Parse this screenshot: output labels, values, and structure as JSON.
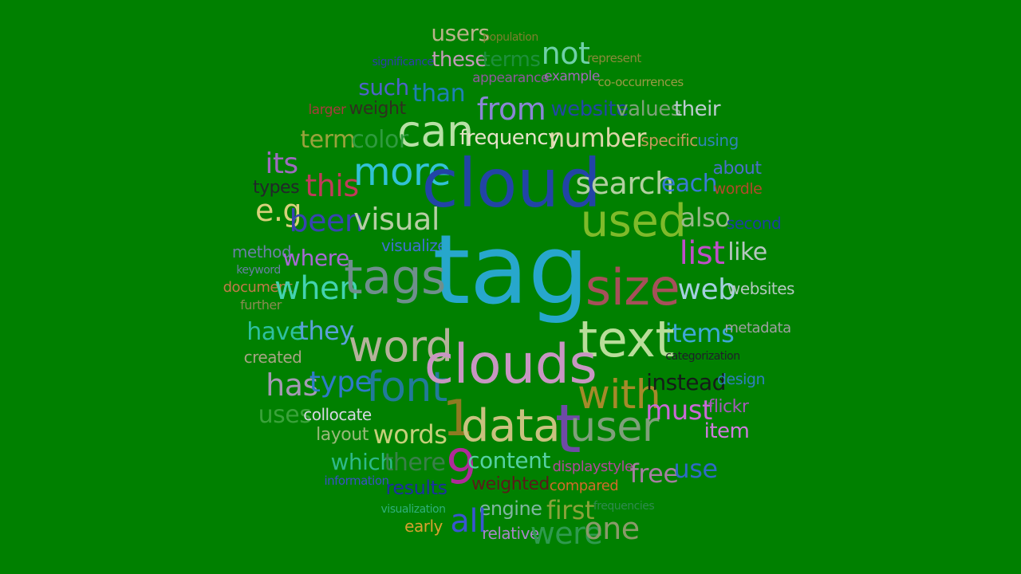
{
  "background_color": "#008000",
  "words": [
    {
      "text": "users",
      "color": "#b9b38a",
      "size": "m"
    },
    {
      "text": "population",
      "color": "#7d7f2e",
      "size": "xs"
    },
    {
      "text": "significance",
      "color": "#2d3cae",
      "size": "xs"
    },
    {
      "text": "these",
      "color": "#c29bb8",
      "size": "m"
    },
    {
      "text": "terms",
      "color": "#1e8f3c",
      "size": "m"
    },
    {
      "text": "not",
      "color": "#6fd0a8",
      "size": "l"
    },
    {
      "text": "represent",
      "color": "#8a8a3a",
      "size": "xs"
    },
    {
      "text": "appearance",
      "color": "#8d5a9a",
      "size": "s"
    },
    {
      "text": "example",
      "color": "#a169b8",
      "size": "s"
    },
    {
      "text": "co-occurrences",
      "color": "#9a9a44",
      "size": "xs"
    },
    {
      "text": "such",
      "color": "#4f63c9",
      "size": "m"
    },
    {
      "text": "than",
      "color": "#1f7fb6",
      "size": "m"
    },
    {
      "text": "from",
      "color": "#8a86d6",
      "size": "l"
    },
    {
      "text": "website",
      "color": "#2247a3",
      "size": "m"
    },
    {
      "text": "values",
      "color": "#7ea17a",
      "size": "m"
    },
    {
      "text": "their",
      "color": "#bccbcf",
      "size": "m"
    },
    {
      "text": "larger",
      "color": "#a53c3c",
      "size": "s"
    },
    {
      "text": "weight",
      "color": "#2f2f1f",
      "size": "s"
    },
    {
      "text": "can",
      "color": "#b8e0a6",
      "size": "xl"
    },
    {
      "text": "term",
      "color": "#99a23c",
      "size": "m"
    },
    {
      "text": "color",
      "color": "#2f9a3f",
      "size": "m"
    },
    {
      "text": "frequency",
      "color": "#e6e2c8",
      "size": "m"
    },
    {
      "text": "number",
      "color": "#dcd6a8",
      "size": "m"
    },
    {
      "text": "specific",
      "color": "#c49a5c",
      "size": "s"
    },
    {
      "text": "using",
      "color": "#2f84b6",
      "size": "s"
    },
    {
      "text": "its",
      "color": "#9e6bbf",
      "size": "m"
    },
    {
      "text": "this",
      "color": "#c23a5a",
      "size": "l"
    },
    {
      "text": "more",
      "color": "#32c2d6",
      "size": "l"
    },
    {
      "text": "cloud",
      "color": "#2244a6",
      "size": "xxl"
    },
    {
      "text": "search",
      "color": "#b2cfa0",
      "size": "l"
    },
    {
      "text": "each",
      "color": "#3a7ad6",
      "size": "m"
    },
    {
      "text": "about",
      "color": "#4a6fc9",
      "size": "s"
    },
    {
      "text": "types",
      "color": "#22262a",
      "size": "s"
    },
    {
      "text": "wordle",
      "color": "#b24a2a",
      "size": "s"
    },
    {
      "text": "e.g",
      "color": "#d8d07a",
      "size": "m"
    },
    {
      "text": "been",
      "color": "#3844b0",
      "size": "l"
    },
    {
      "text": "visual",
      "color": "#b6cea4",
      "size": "l"
    },
    {
      "text": "used",
      "color": "#7fba2a",
      "size": "xl"
    },
    {
      "text": "also",
      "color": "#9ab88a",
      "size": "m"
    },
    {
      "text": "second",
      "color": "#1c3fa0",
      "size": "s"
    },
    {
      "text": "visualize",
      "color": "#3f6fd2",
      "size": "s"
    },
    {
      "text": "method",
      "color": "#6a7fa6",
      "size": "s"
    },
    {
      "text": "keyword",
      "color": "#6a7fa6",
      "size": "xs"
    },
    {
      "text": "where",
      "color": "#a66ad2",
      "size": "m"
    },
    {
      "text": "tag",
      "color": "#27a7cc",
      "size": "xxxl"
    },
    {
      "text": "list",
      "color": "#c04ec8",
      "size": "l"
    },
    {
      "text": "like",
      "color": "#b6c6c0",
      "size": "m"
    },
    {
      "text": "document",
      "color": "#c27a4a",
      "size": "s"
    },
    {
      "text": "further",
      "color": "#8a8a52",
      "size": "s"
    },
    {
      "text": "when",
      "color": "#43d2b0",
      "size": "l"
    },
    {
      "text": "tags",
      "color": "#6f8f8c",
      "size": "xl"
    },
    {
      "text": "size",
      "color": "#a6505a",
      "size": "xl"
    },
    {
      "text": "web",
      "color": "#a3cfdf",
      "size": "l"
    },
    {
      "text": "websites",
      "color": "#b4c8c0",
      "size": "s"
    },
    {
      "text": "have",
      "color": "#2fbf9f",
      "size": "m"
    },
    {
      "text": "they",
      "color": "#5aa0d8",
      "size": "m"
    },
    {
      "text": "items",
      "color": "#3fa8d6",
      "size": "m"
    },
    {
      "text": "metadata",
      "color": "#9fa0a0",
      "size": "s"
    },
    {
      "text": "word",
      "color": "#b4b29a",
      "size": "xl"
    },
    {
      "text": "text",
      "color": "#b9dd9a",
      "size": "xl"
    },
    {
      "text": "created",
      "color": "#a8a484",
      "size": "s"
    },
    {
      "text": "categorization",
      "color": "#1f1f2a",
      "size": "xs"
    },
    {
      "text": "has",
      "color": "#a59ab4",
      "size": "l"
    },
    {
      "text": "type",
      "color": "#2f7ac9",
      "size": "l"
    },
    {
      "text": "font",
      "color": "#227a9a",
      "size": "xl"
    },
    {
      "text": "clouds",
      "color": "#c896c2",
      "size": "xl"
    },
    {
      "text": "with",
      "color": "#a68a2a",
      "size": "l"
    },
    {
      "text": "instead",
      "color": "#141d18",
      "size": "m"
    },
    {
      "text": "design",
      "color": "#2f7fbf",
      "size": "s"
    },
    {
      "text": "uses",
      "color": "#3aa23a",
      "size": "m"
    },
    {
      "text": "collocate",
      "color": "#d6d6e2",
      "size": "s"
    },
    {
      "text": "1",
      "color": "#8f7a22",
      "size": "xl"
    },
    {
      "text": "data",
      "color": "#c9c17f",
      "size": "xl"
    },
    {
      "text": "t",
      "color": "#6f4aa6",
      "size": "xl"
    },
    {
      "text": "user",
      "color": "#7fa07a",
      "size": "xl"
    },
    {
      "text": "must",
      "color": "#c96ad6",
      "size": "m"
    },
    {
      "text": "flickr",
      "color": "#a45ab8",
      "size": "s"
    },
    {
      "text": "item",
      "color": "#d07ae0",
      "size": "m"
    },
    {
      "text": "layout",
      "color": "#9ab87a",
      "size": "s"
    },
    {
      "text": "words",
      "color": "#c6cf7a",
      "size": "m"
    },
    {
      "text": "which",
      "color": "#2fb88a",
      "size": "m"
    },
    {
      "text": "there",
      "color": "#3a7f4a",
      "size": "m"
    },
    {
      "text": "9",
      "color": "#b02a9a",
      "size": "xl"
    },
    {
      "text": "content",
      "color": "#56d0a4",
      "size": "m"
    },
    {
      "text": "displaystyle",
      "color": "#b04a9a",
      "size": "s"
    },
    {
      "text": "free",
      "color": "#a67fa0",
      "size": "m"
    },
    {
      "text": "use",
      "color": "#2f6ac6",
      "size": "m"
    },
    {
      "text": "information",
      "color": "#3a4fc6",
      "size": "xs"
    },
    {
      "text": "results",
      "color": "#1c2fa0",
      "size": "s"
    },
    {
      "text": "weighted",
      "color": "#5a1a1a",
      "size": "s"
    },
    {
      "text": "compared",
      "color": "#d26a2a",
      "size": "s"
    },
    {
      "text": "visualization",
      "color": "#2faf7a",
      "size": "xs"
    },
    {
      "text": "engine",
      "color": "#7fb6a0",
      "size": "s"
    },
    {
      "text": "first",
      "color": "#8aa23a",
      "size": "m"
    },
    {
      "text": "frequencies",
      "color": "#2f8a4f",
      "size": "xs"
    },
    {
      "text": "early",
      "color": "#d8a02f",
      "size": "s"
    },
    {
      "text": "all",
      "color": "#3a55d2",
      "size": "l"
    },
    {
      "text": "relative",
      "color": "#a886c8",
      "size": "s"
    },
    {
      "text": "were",
      "color": "#2f9a4f",
      "size": "l"
    },
    {
      "text": "one",
      "color": "#8a9a6a",
      "size": "l"
    }
  ]
}
